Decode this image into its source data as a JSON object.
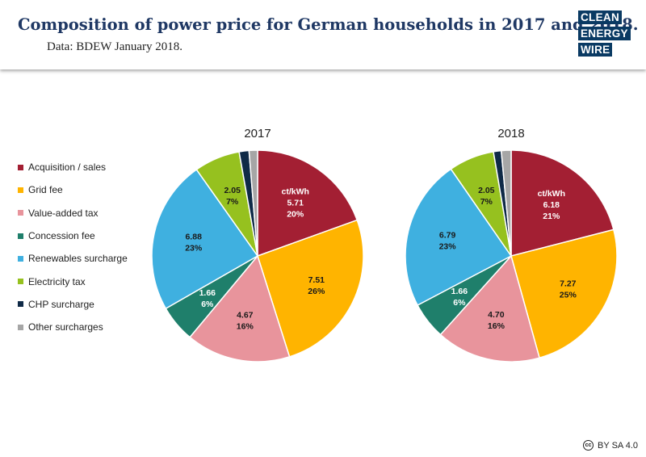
{
  "header": {
    "title": "Composition of power price for German households in 2017 and 2018.",
    "subtitle": "Data: BDEW January 2018.",
    "logo_lines": [
      "CLEAN",
      "ENERGY",
      "WIRE"
    ]
  },
  "license": {
    "icon": "cc-icon",
    "text": "BY SA 4.0"
  },
  "chart_data": [
    {
      "type": "pie",
      "title": "2017",
      "unit_label": "ct/kWh",
      "slices": [
        {
          "name": "Acquisition / sales",
          "value": 5.71,
          "value_label": "5.71",
          "percent_label": "20%",
          "color": "#a31f33"
        },
        {
          "name": "Grid fee",
          "value": 7.51,
          "value_label": "7.51",
          "percent_label": "26%",
          "color": "#ffb400"
        },
        {
          "name": "Value-added tax",
          "value": 4.67,
          "value_label": "4.67",
          "percent_label": "16%",
          "color": "#e8949c"
        },
        {
          "name": "Concession fee",
          "value": 1.66,
          "value_label": "1.66",
          "percent_label": "6%",
          "color": "#1f7f6b"
        },
        {
          "name": "Renewables surcharge",
          "value": 6.88,
          "value_label": "6.88",
          "percent_label": "23%",
          "color": "#3fb0e0"
        },
        {
          "name": "Electricity tax",
          "value": 2.05,
          "value_label": "2.05",
          "percent_label": "7%",
          "color": "#96c11f"
        },
        {
          "name": "CHP surcharge",
          "value": 0.44,
          "value_label": null,
          "percent_label": null,
          "color": "#0f2a47"
        },
        {
          "name": "Other surcharges",
          "value": 0.38,
          "value_label": null,
          "percent_label": null,
          "color": "#a6a6a6"
        }
      ]
    },
    {
      "type": "pie",
      "title": "2018",
      "unit_label": "ct/kWh",
      "slices": [
        {
          "name": "Acquisition / sales",
          "value": 6.18,
          "value_label": "6.18",
          "percent_label": "21%",
          "color": "#a31f33"
        },
        {
          "name": "Grid fee",
          "value": 7.27,
          "value_label": "7.27",
          "percent_label": "25%",
          "color": "#ffb400"
        },
        {
          "name": "Value-added tax",
          "value": 4.7,
          "value_label": "4.70",
          "percent_label": "16%",
          "color": "#e8949c"
        },
        {
          "name": "Concession fee",
          "value": 1.66,
          "value_label": "1.66",
          "percent_label": "6%",
          "color": "#1f7f6b"
        },
        {
          "name": "Renewables surcharge",
          "value": 6.79,
          "value_label": "6.79",
          "percent_label": "23%",
          "color": "#3fb0e0"
        },
        {
          "name": "Electricity tax",
          "value": 2.05,
          "value_label": "2.05",
          "percent_label": "7%",
          "color": "#96c11f"
        },
        {
          "name": "CHP surcharge",
          "value": 0.35,
          "value_label": null,
          "percent_label": null,
          "color": "#0f2a47"
        },
        {
          "name": "Other surcharges",
          "value": 0.44,
          "value_label": null,
          "percent_label": null,
          "color": "#a6a6a6"
        }
      ]
    }
  ],
  "legend": [
    {
      "label": "Acquisition / sales",
      "color": "#a31f33"
    },
    {
      "label": "Grid fee",
      "color": "#ffb400"
    },
    {
      "label": "Value-added tax",
      "color": "#e8949c"
    },
    {
      "label": "Concession fee",
      "color": "#1f7f6b"
    },
    {
      "label": "Renewables surcharge",
      "color": "#3fb0e0"
    },
    {
      "label": "Electricity tax",
      "color": "#96c11f"
    },
    {
      "label": "CHP surcharge",
      "color": "#0f2a47"
    },
    {
      "label": "Other surcharges",
      "color": "#a6a6a6"
    }
  ]
}
